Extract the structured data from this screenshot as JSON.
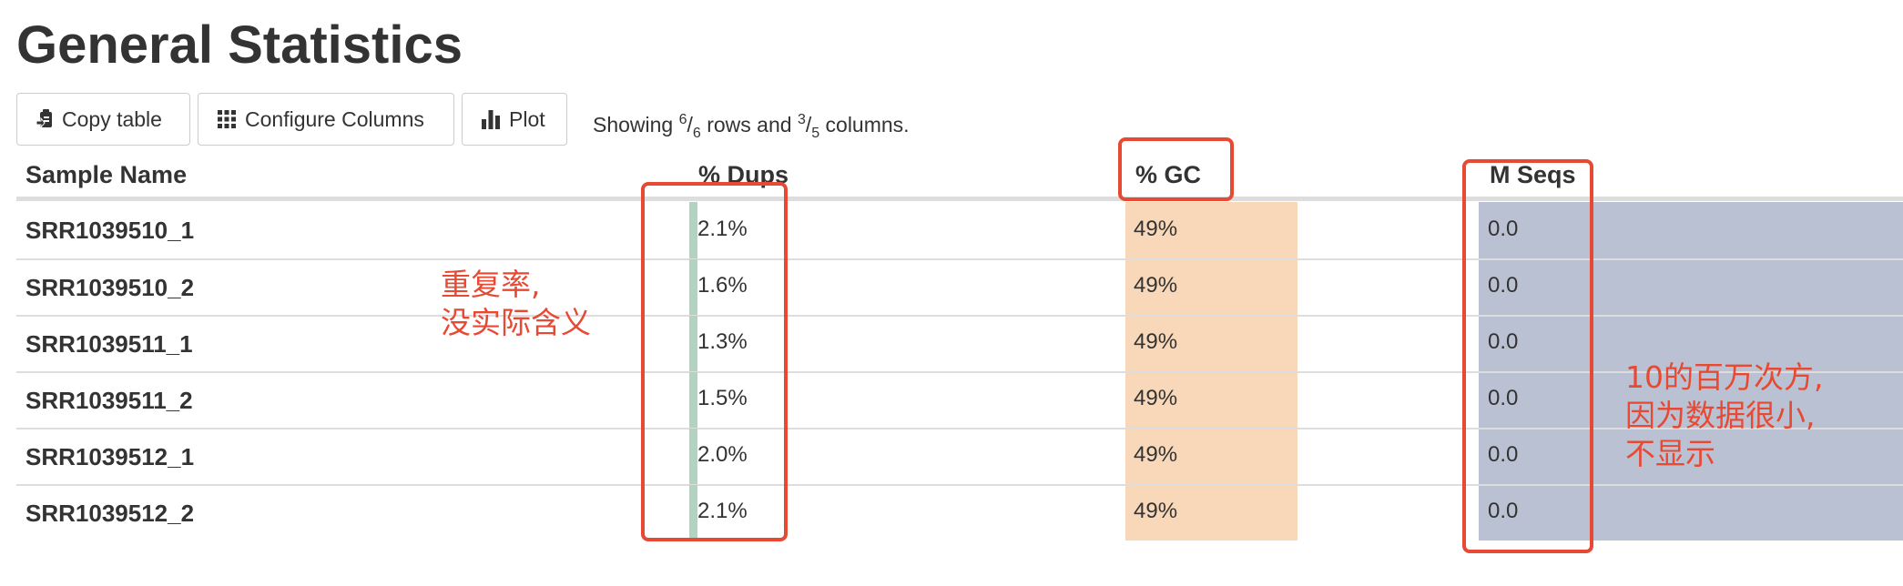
{
  "page_title": "General Statistics",
  "toolbar": {
    "copy_label": "Copy table",
    "configure_label": "Configure Columns",
    "plot_label": "Plot",
    "showing_prefix": "Showing ",
    "rows_num": "6",
    "rows_den": "6",
    "rows_word": " rows and ",
    "cols_num": "3",
    "cols_den": "5",
    "cols_word": " columns."
  },
  "table": {
    "headers": {
      "sample": "Sample Name",
      "dups": "% Dups",
      "gc": "% GC",
      "mseqs": "M Seqs"
    },
    "rows": [
      {
        "sample": "SRR1039510_1",
        "dups": "2.1%",
        "dups_value": 2.1,
        "gc": "49%",
        "mseqs": "0.0"
      },
      {
        "sample": "SRR1039510_2",
        "dups": "1.6%",
        "dups_value": 1.6,
        "gc": "49%",
        "mseqs": "0.0"
      },
      {
        "sample": "SRR1039511_1",
        "dups": "1.3%",
        "dups_value": 1.3,
        "gc": "49%",
        "mseqs": "0.0"
      },
      {
        "sample": "SRR1039511_2",
        "dups": "1.5%",
        "dups_value": 1.5,
        "gc": "49%",
        "mseqs": "0.0"
      },
      {
        "sample": "SRR1039512_1",
        "dups": "2.0%",
        "dups_value": 2.0,
        "gc": "49%",
        "mseqs": "0.0"
      },
      {
        "sample": "SRR1039512_2",
        "dups": "2.1%",
        "dups_value": 2.1,
        "gc": "49%",
        "mseqs": "0.0"
      }
    ]
  },
  "annotations": {
    "dups_note": "重复率,\n没实际含义",
    "mseqs_note": "10的百万次方,\n因为数据很小,\n不显示"
  },
  "colors": {
    "gc_cell": "#f8d8b8",
    "mseqs_cell": "#b9c1d2",
    "dups_bar": "#b2d2c2",
    "annotation_red": "#e74933"
  },
  "icons": {
    "copy": "clipboard-icon",
    "configure": "grid-icon",
    "plot": "bar-chart-icon"
  }
}
